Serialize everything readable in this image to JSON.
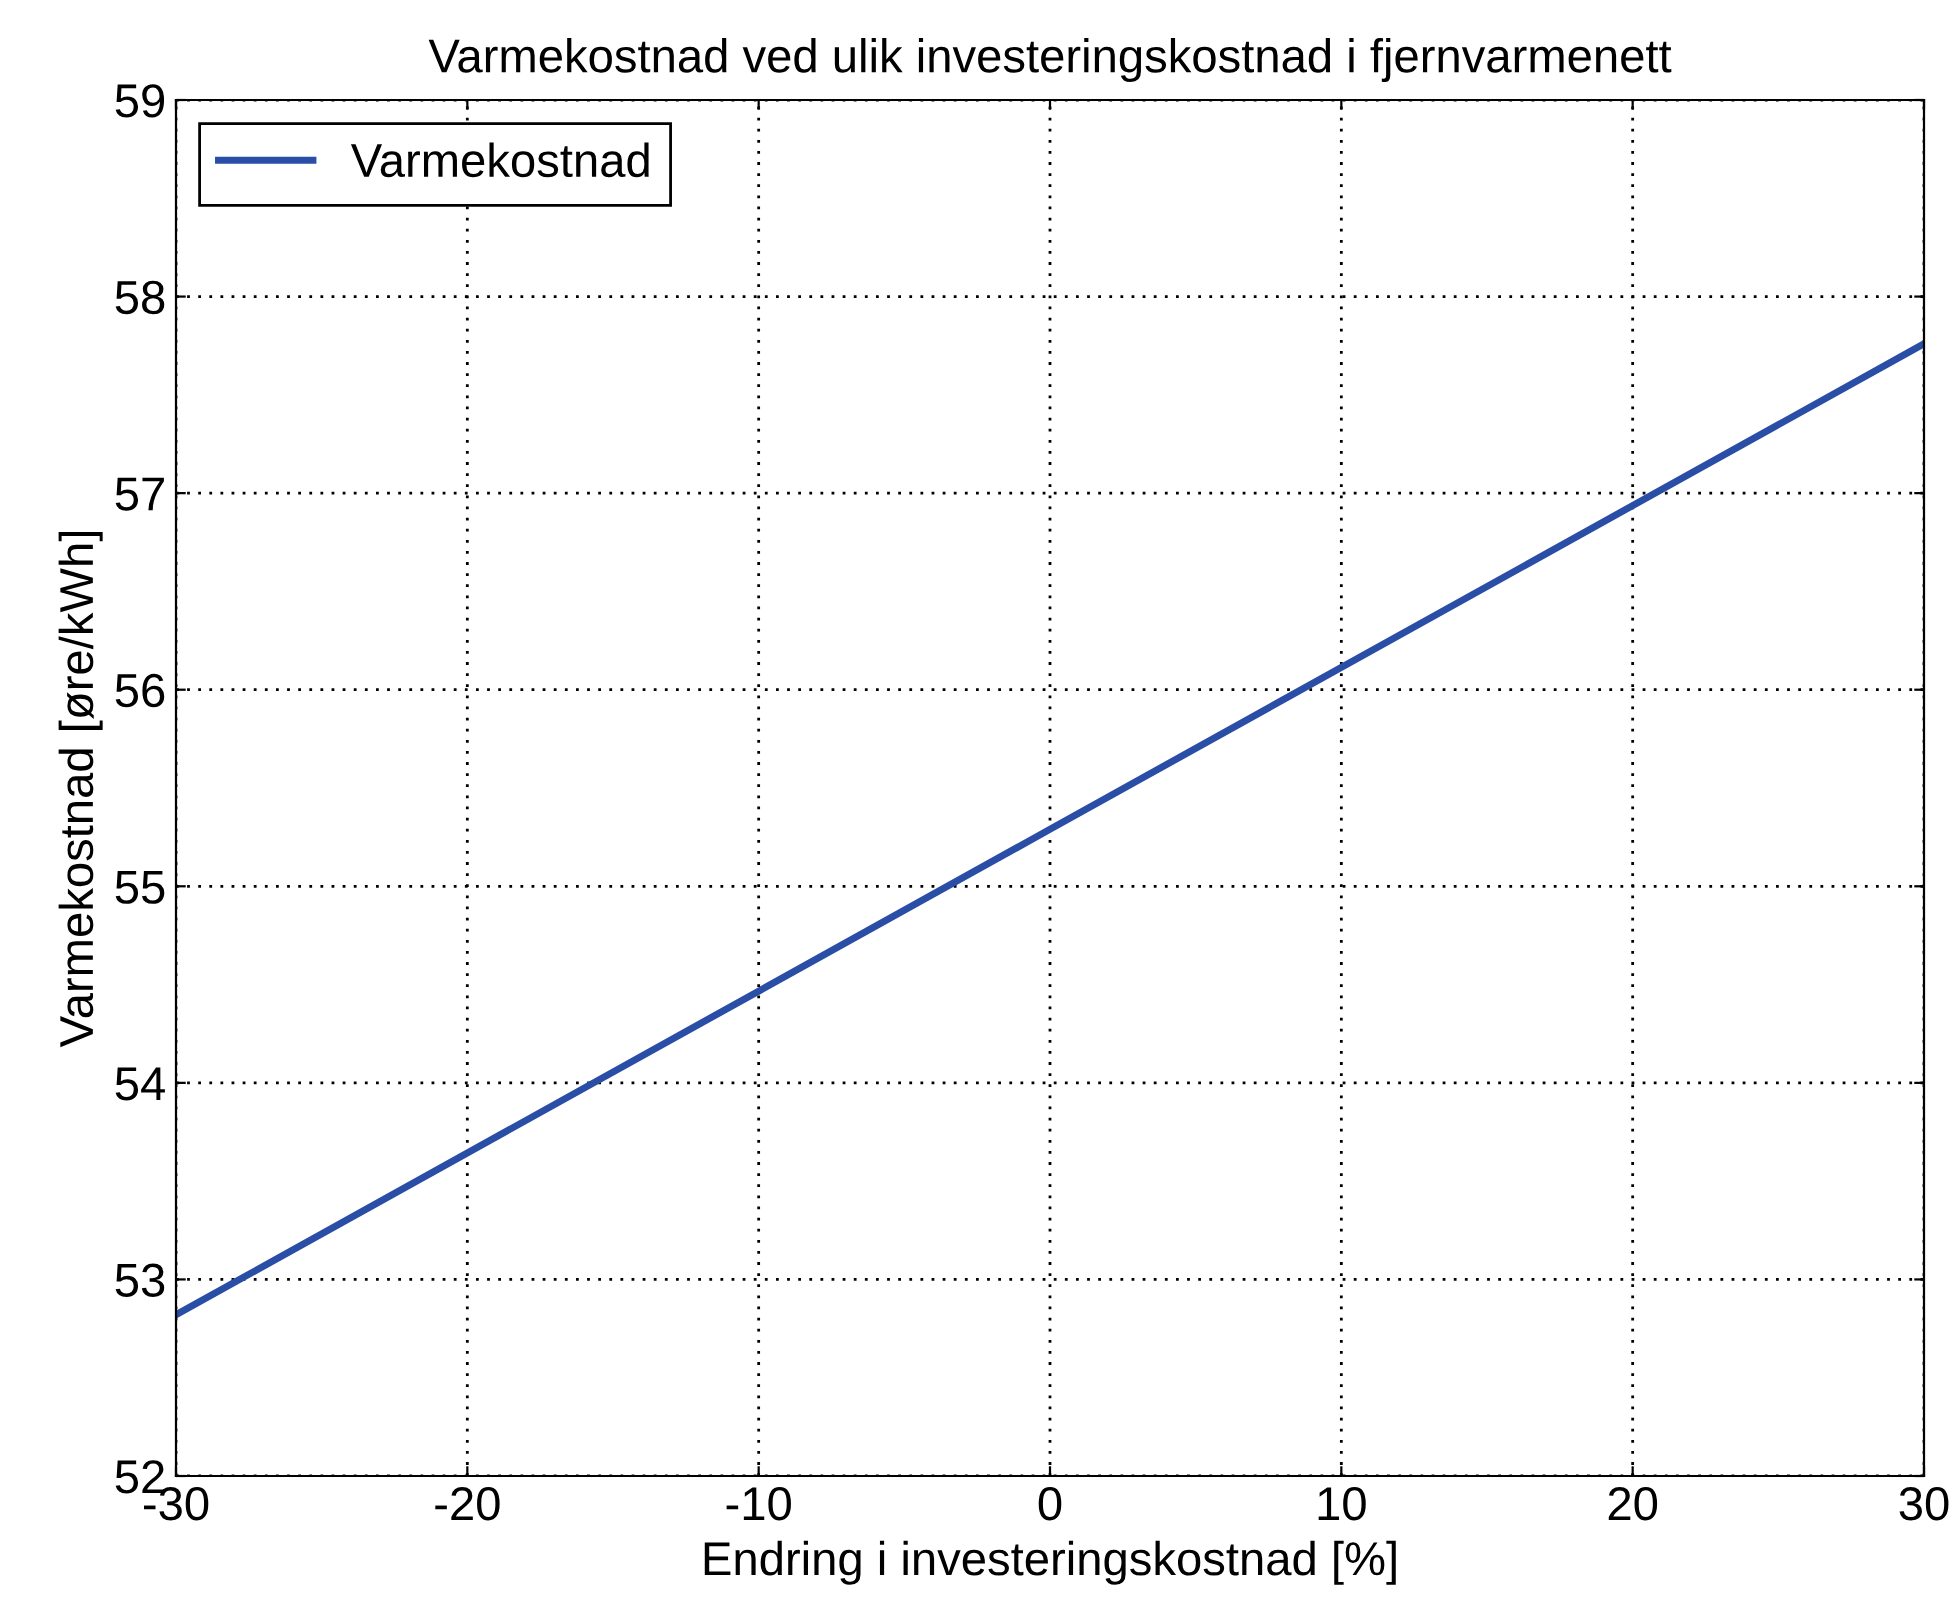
{
  "chart_data": {
    "type": "line",
    "title": "Varmekostnad ved ulik investeringskostnad i fjernvarmenett",
    "xlabel": "Endring i investeringskostnad [%]",
    "ylabel": "Varmekostnad [øre/kWh]",
    "x": [
      -30,
      0,
      30
    ],
    "series": [
      {
        "name": "Varmekostnad",
        "color": "#2a4ea6",
        "values": [
          52.82,
          55.29,
          57.76
        ]
      }
    ],
    "xlim": [
      -30,
      30
    ],
    "xticks": [
      -30,
      -20,
      -10,
      0,
      10,
      20,
      30
    ],
    "ylim": [
      52,
      59
    ],
    "yticks": [
      52,
      53,
      54,
      55,
      56,
      57,
      58,
      59
    ],
    "grid": true,
    "legend": "top left",
    "marker": "none",
    "line_style": "solid"
  }
}
